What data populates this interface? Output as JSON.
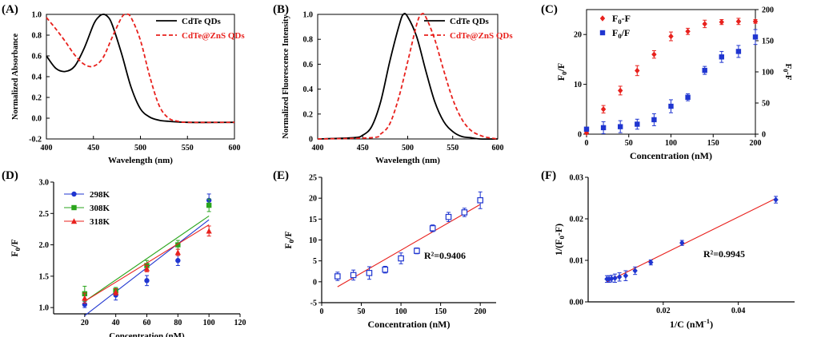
{
  "chart_data": [
    {
      "id": "A",
      "panel_label": "(A)",
      "type": "line",
      "xlabel": "Wavelength (nm)",
      "ylabel": "Normalized Absorbance",
      "xlim": [
        400,
        600
      ],
      "ylim": [
        -0.2,
        1.0
      ],
      "xticks": [
        400,
        450,
        500,
        550,
        600
      ],
      "yticks": [
        -0.2,
        0.0,
        0.2,
        0.4,
        0.6,
        0.8,
        1.0
      ],
      "ytick_labels": [
        "-0.2",
        "0.0",
        "0.2",
        "0.4",
        "0.6",
        "0.8",
        "1.0"
      ],
      "legend": "top-right",
      "series": [
        {
          "name": "CdTe QDs",
          "color": "#000000",
          "dashed": false,
          "x": [
            400,
            410,
            420,
            430,
            440,
            450,
            455,
            460,
            465,
            470,
            480,
            490,
            500,
            510,
            520,
            530,
            550,
            600
          ],
          "y": [
            0.6,
            0.48,
            0.45,
            0.5,
            0.67,
            0.9,
            0.97,
            1.0,
            0.98,
            0.9,
            0.62,
            0.3,
            0.09,
            0.01,
            -0.02,
            -0.03,
            -0.04,
            -0.04
          ]
        },
        {
          "name": "CdTe@ZnS QDs",
          "color": "#e8211d",
          "dashed": true,
          "x": [
            400,
            410,
            420,
            430,
            440,
            450,
            460,
            470,
            480,
            485,
            490,
            500,
            510,
            520,
            530,
            540,
            550,
            600
          ],
          "y": [
            0.97,
            0.86,
            0.74,
            0.61,
            0.52,
            0.5,
            0.58,
            0.78,
            0.97,
            1.0,
            0.97,
            0.75,
            0.4,
            0.12,
            0.0,
            -0.03,
            -0.04,
            -0.04
          ]
        }
      ]
    },
    {
      "id": "B",
      "panel_label": "(B)",
      "type": "line",
      "xlabel": "Wavelength (nm)",
      "ylabel": "Normalized Fluorescence Intensity",
      "xlim": [
        400,
        600
      ],
      "ylim": [
        0,
        1.0
      ],
      "xticks": [
        400,
        450,
        500,
        550,
        600
      ],
      "yticks": [
        0,
        0.2,
        0.4,
        0.6,
        0.8,
        1.0
      ],
      "ytick_labels": [
        "0",
        "0.2",
        "0.4",
        "0.6",
        "0.8",
        "1.0"
      ],
      "legend": "top-right",
      "series": [
        {
          "name": "CdTe QDs",
          "color": "#000000",
          "dashed": false,
          "x": [
            400,
            440,
            450,
            460,
            470,
            480,
            490,
            495,
            500,
            510,
            520,
            530,
            540,
            550,
            560,
            570,
            580,
            600
          ],
          "y": [
            0,
            0.01,
            0.03,
            0.1,
            0.3,
            0.62,
            0.9,
            1.0,
            0.98,
            0.82,
            0.55,
            0.3,
            0.14,
            0.06,
            0.02,
            0.01,
            0.0,
            0
          ]
        },
        {
          "name": "CdTe@ZnS QDs",
          "color": "#e8211d",
          "dashed": true,
          "x": [
            400,
            460,
            470,
            480,
            490,
            500,
            510,
            515,
            520,
            530,
            540,
            550,
            560,
            570,
            580,
            590,
            600
          ],
          "y": [
            0,
            0.01,
            0.04,
            0.12,
            0.33,
            0.62,
            0.92,
            1.0,
            0.98,
            0.8,
            0.55,
            0.32,
            0.16,
            0.07,
            0.03,
            0.01,
            0
          ]
        }
      ]
    },
    {
      "id": "C",
      "panel_label": "(C)",
      "type": "scatter",
      "xlabel": "Concentration (nM)",
      "ylabel": "F0/F",
      "y2label": "F0-F",
      "xlim": [
        0,
        200
      ],
      "ylim": [
        0,
        25
      ],
      "y2lim": [
        0,
        200
      ],
      "xticks": [
        0,
        50,
        100,
        150,
        200
      ],
      "yticks": [
        0,
        10,
        20
      ],
      "y2ticks": [
        0,
        50,
        100,
        150,
        200
      ],
      "legend": "top-left",
      "series": [
        {
          "name": "F0-F",
          "axis": "right",
          "color": "#e8211d",
          "marker": "diamond",
          "x": [
            0,
            20,
            40,
            60,
            80,
            100,
            120,
            140,
            160,
            180,
            200
          ],
          "y": [
            2,
            40,
            70,
            102,
            128,
            157,
            165,
            177,
            180,
            181,
            181
          ],
          "err": [
            1,
            6,
            7,
            8,
            6,
            7,
            5,
            6,
            4,
            5,
            3
          ]
        },
        {
          "name": "F0/F",
          "axis": "left",
          "color": "#1f35d0",
          "marker": "square",
          "x": [
            0,
            20,
            40,
            60,
            80,
            100,
            120,
            140,
            160,
            180,
            200
          ],
          "y": [
            1.0,
            1.3,
            1.5,
            2.0,
            2.9,
            5.6,
            7.4,
            12.8,
            15.5,
            16.6,
            19.5
          ],
          "err": [
            0.3,
            1.2,
            1.2,
            1.0,
            1.2,
            1.3,
            0.7,
            0.8,
            1.1,
            1.2,
            1.5
          ]
        }
      ]
    },
    {
      "id": "D",
      "panel_label": "(D)",
      "type": "scatter",
      "xlabel": "Concentration (nM)",
      "ylabel": "F0/F",
      "xlim": [
        0,
        120
      ],
      "ylim": [
        0.9,
        3.0
      ],
      "xticks": [
        20,
        40,
        60,
        80,
        100,
        120
      ],
      "yticks": [
        1.0,
        1.5,
        2.0,
        2.5,
        3.0
      ],
      "ytick_labels": [
        "1.0",
        "1.5",
        "2.0",
        "2.5",
        "3.0"
      ],
      "legend": "top-left",
      "series": [
        {
          "name": "298K",
          "color": "#1f35d0",
          "marker": "circle",
          "x": [
            20,
            40,
            60,
            80,
            100
          ],
          "y": [
            1.05,
            1.2,
            1.43,
            1.75,
            2.71
          ],
          "err": [
            0.05,
            0.08,
            0.08,
            0.08,
            0.1
          ],
          "fit": [
            [
              20,
              0.87
            ],
            [
              100,
              2.4
            ]
          ]
        },
        {
          "name": "308K",
          "color": "#2aa51c",
          "marker": "square",
          "x": [
            20,
            40,
            60,
            80,
            100
          ],
          "y": [
            1.22,
            1.27,
            1.67,
            2.0,
            2.63
          ],
          "err": [
            0.12,
            0.05,
            0.08,
            0.07,
            0.1
          ],
          "fit": [
            [
              20,
              1.1
            ],
            [
              100,
              2.46
            ]
          ]
        },
        {
          "name": "318K",
          "color": "#e8211d",
          "marker": "triangle",
          "x": [
            20,
            40,
            60,
            80,
            100
          ],
          "y": [
            1.15,
            1.25,
            1.62,
            1.88,
            2.22
          ],
          "err": [
            0.08,
            0.05,
            0.05,
            0.05,
            0.08
          ],
          "fit": [
            [
              20,
              1.1
            ],
            [
              100,
              2.32
            ]
          ]
        }
      ]
    },
    {
      "id": "E",
      "panel_label": "(E)",
      "type": "scatter",
      "xlabel": "Concentration (nM)",
      "ylabel": "F0/F",
      "xlim": [
        0,
        220
      ],
      "ylim": [
        -5,
        25
      ],
      "xticks": [
        0,
        50,
        100,
        150,
        200
      ],
      "yticks": [
        -5,
        0,
        5,
        10,
        15,
        20,
        25
      ],
      "annotation": "R²=0.9406",
      "series": [
        {
          "name": "F0/F",
          "color": "#1f35d0",
          "marker": "open-square",
          "x": [
            20,
            40,
            60,
            80,
            100,
            120,
            140,
            160,
            180,
            200
          ],
          "y": [
            1.3,
            1.6,
            2.1,
            2.9,
            5.6,
            7.4,
            12.8,
            15.5,
            16.6,
            19.5
          ],
          "err": [
            1.0,
            1.2,
            1.5,
            0.8,
            1.3,
            0.7,
            0.8,
            1.1,
            1.0,
            2.0
          ],
          "fit": [
            [
              20,
              -1.2
            ],
            [
              200,
              18.5
            ]
          ]
        }
      ]
    },
    {
      "id": "F",
      "panel_label": "(F)",
      "type": "scatter",
      "xlabel": "1/C (nM-1)",
      "ylabel": "1/(F0-F)",
      "xlim": [
        0,
        0.055
      ],
      "ylim": [
        0,
        0.03
      ],
      "xticks": [
        0.02,
        0.04
      ],
      "xtick_labels": [
        "0.02",
        "0.04"
      ],
      "yticks": [
        0,
        0.01,
        0.02,
        0.03
      ],
      "ytick_labels": [
        "0.00",
        "0.01",
        "0.02",
        "0.03"
      ],
      "annotation": "R²=0.9945",
      "series": [
        {
          "name": "1/(F0-F)",
          "color": "#1f35d0",
          "marker": "diamond",
          "x": [
            0.005,
            0.00556,
            0.00625,
            0.00714,
            0.00833,
            0.01,
            0.0125,
            0.0167,
            0.025,
            0.05
          ],
          "y": [
            0.0055,
            0.0055,
            0.0056,
            0.0057,
            0.006,
            0.0063,
            0.0075,
            0.0095,
            0.0142,
            0.0246
          ],
          "err": [
            0.0008,
            0.0008,
            0.0008,
            0.001,
            0.001,
            0.0012,
            0.0009,
            0.0006,
            0.0006,
            0.0008
          ],
          "fit": [
            [
              0.005,
              0.0048
            ],
            [
              0.05,
              0.0249
            ]
          ]
        }
      ]
    }
  ]
}
